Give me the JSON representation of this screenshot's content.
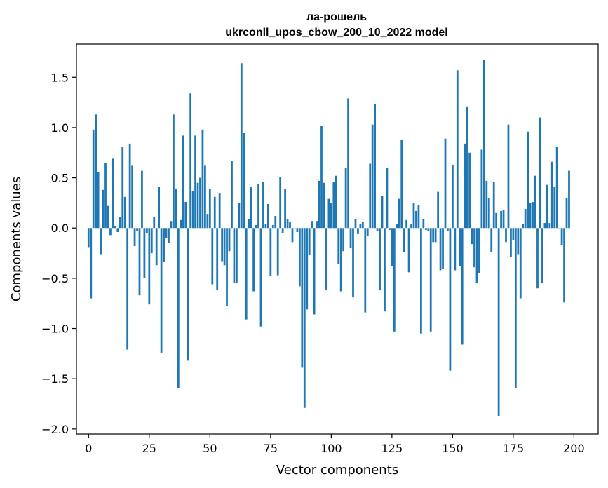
{
  "chart_data": {
    "type": "bar",
    "title": "ла-рошель",
    "subtitle": "ukrconll_upos_cbow_200_10_2022 model",
    "xlabel": "Vector components",
    "ylabel": "Components values",
    "xlim": [
      -5,
      210
    ],
    "ylim": [
      -2.05,
      1.83
    ],
    "x_ticks": [
      0,
      25,
      50,
      75,
      100,
      125,
      150,
      175,
      200
    ],
    "y_ticks": [
      -2.0,
      -1.5,
      -1.0,
      -0.5,
      0.0,
      0.5,
      1.0,
      1.5
    ],
    "x_tick_labels": [
      "0",
      "25",
      "50",
      "75",
      "100",
      "125",
      "150",
      "175",
      "200"
    ],
    "y_tick_labels": [
      "−2.0",
      "−1.5",
      "−1.0",
      "−0.5",
      "0.0",
      "0.5",
      "1.0",
      "1.5"
    ],
    "bar_color": "#1f77b4",
    "grid": false,
    "values": [
      -0.19,
      -0.7,
      0.98,
      1.13,
      0.56,
      -0.26,
      0.38,
      0.65,
      0.22,
      -0.07,
      0.69,
      0.02,
      -0.04,
      0.11,
      0.81,
      0.31,
      -1.21,
      0.84,
      0.62,
      -0.18,
      -0.03,
      -0.67,
      0.57,
      -0.5,
      -0.05,
      -0.76,
      -0.25,
      0.11,
      -0.37,
      0.41,
      -1.24,
      -0.34,
      -0.1,
      -0.15,
      0.07,
      1.13,
      0.39,
      -1.59,
      0.08,
      0.92,
      0.26,
      -1.32,
      1.34,
      0.37,
      0.92,
      0.45,
      0.5,
      0.98,
      0.62,
      0.14,
      0.39,
      -0.56,
      0.31,
      -0.62,
      0.35,
      -0.33,
      -0.37,
      -0.78,
      -0.23,
      0.67,
      -0.55,
      -0.55,
      0.25,
      1.64,
      0.95,
      -0.91,
      0.09,
      0.41,
      -0.63,
      0.03,
      0.44,
      -0.98,
      0.46,
      0.04,
      0.24,
      -0.48,
      0.03,
      0.12,
      -0.47,
      0.51,
      -0.05,
      0.39,
      0.09,
      0.06,
      -0.14,
      0.0,
      -0.04,
      -0.58,
      -1.39,
      -1.79,
      -0.81,
      -0.27,
      0.07,
      -0.86,
      0.07,
      0.47,
      1.02,
      0.45,
      -0.62,
      0.29,
      0.25,
      0.46,
      0.52,
      -0.36,
      -0.63,
      -0.23,
      0.6,
      1.29,
      -0.2,
      -0.69,
      0.09,
      -0.06,
      0.04,
      0.06,
      -0.84,
      -0.08,
      0.64,
      1.03,
      1.23,
      -0.03,
      -0.62,
      0.32,
      -0.83,
      0.6,
      -0.02,
      -0.38,
      -1.03,
      0.04,
      0.29,
      0.88,
      -0.24,
      0.08,
      -0.44,
      0.04,
      0.25,
      0.17,
      0.23,
      -1.05,
      0.09,
      -0.02,
      -0.03,
      -1.03,
      -0.14,
      -0.14,
      0.36,
      -0.42,
      -0.41,
      0.89,
      -0.03,
      -1.42,
      0.63,
      -0.42,
      1.57,
      -0.38,
      -1.16,
      0.84,
      1.21,
      0.75,
      -0.16,
      -0.39,
      -0.55,
      -0.45,
      0.78,
      1.67,
      0.47,
      0.3,
      -0.24,
      0.46,
      0.15,
      -1.87,
      0.17,
      0.18,
      -0.14,
      1.03,
      -0.29,
      -0.12,
      -1.59,
      -0.26,
      -0.7,
      0.04,
      0.19,
      0.96,
      0.25,
      0.26,
      0.52,
      -0.6,
      1.1,
      -0.55,
      0.05,
      0.43,
      0.05,
      0.66,
      0.41,
      0.81,
      0.0,
      -0.17,
      -0.74,
      0.3,
      0.57
    ]
  }
}
